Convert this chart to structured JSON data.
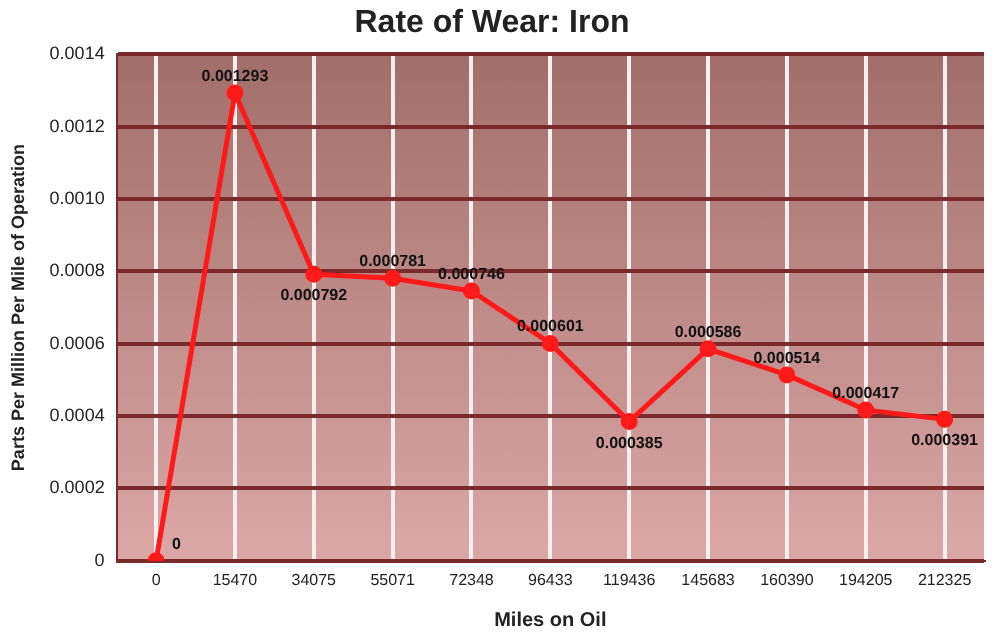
{
  "chart_data": {
    "type": "line",
    "title": "Rate of Wear: Iron",
    "xlabel": "Miles on Oil",
    "ylabel": "Parts Per Million Per Mile of Operation",
    "categories": [
      "0",
      "15470",
      "34075",
      "55071",
      "72348",
      "96433",
      "119436",
      "145683",
      "160390",
      "194205",
      "212325"
    ],
    "series": [
      {
        "color": "#ff1a1a",
        "values": [
          0,
          0.001293,
          0.000792,
          0.000781,
          0.000746,
          0.000601,
          0.000385,
          0.000586,
          0.000514,
          0.000417,
          0.000391
        ]
      }
    ],
    "ylim": [
      0,
      0.0014
    ],
    "yticks": [
      {
        "value": 0,
        "label": "0"
      },
      {
        "value": 0.0002,
        "label": "0.0002"
      },
      {
        "value": 0.0004,
        "label": "0.0004"
      },
      {
        "value": 0.0006,
        "label": "0.0006"
      },
      {
        "value": 0.0008,
        "label": "0.0008"
      },
      {
        "value": 0.001,
        "label": "0.0010"
      },
      {
        "value": 0.0012,
        "label": "0.0012"
      },
      {
        "value": 0.0014,
        "label": "0.0014"
      }
    ],
    "grid": true,
    "legend": false,
    "marker": "circle",
    "line_style": "solid",
    "data_labels": true
  }
}
